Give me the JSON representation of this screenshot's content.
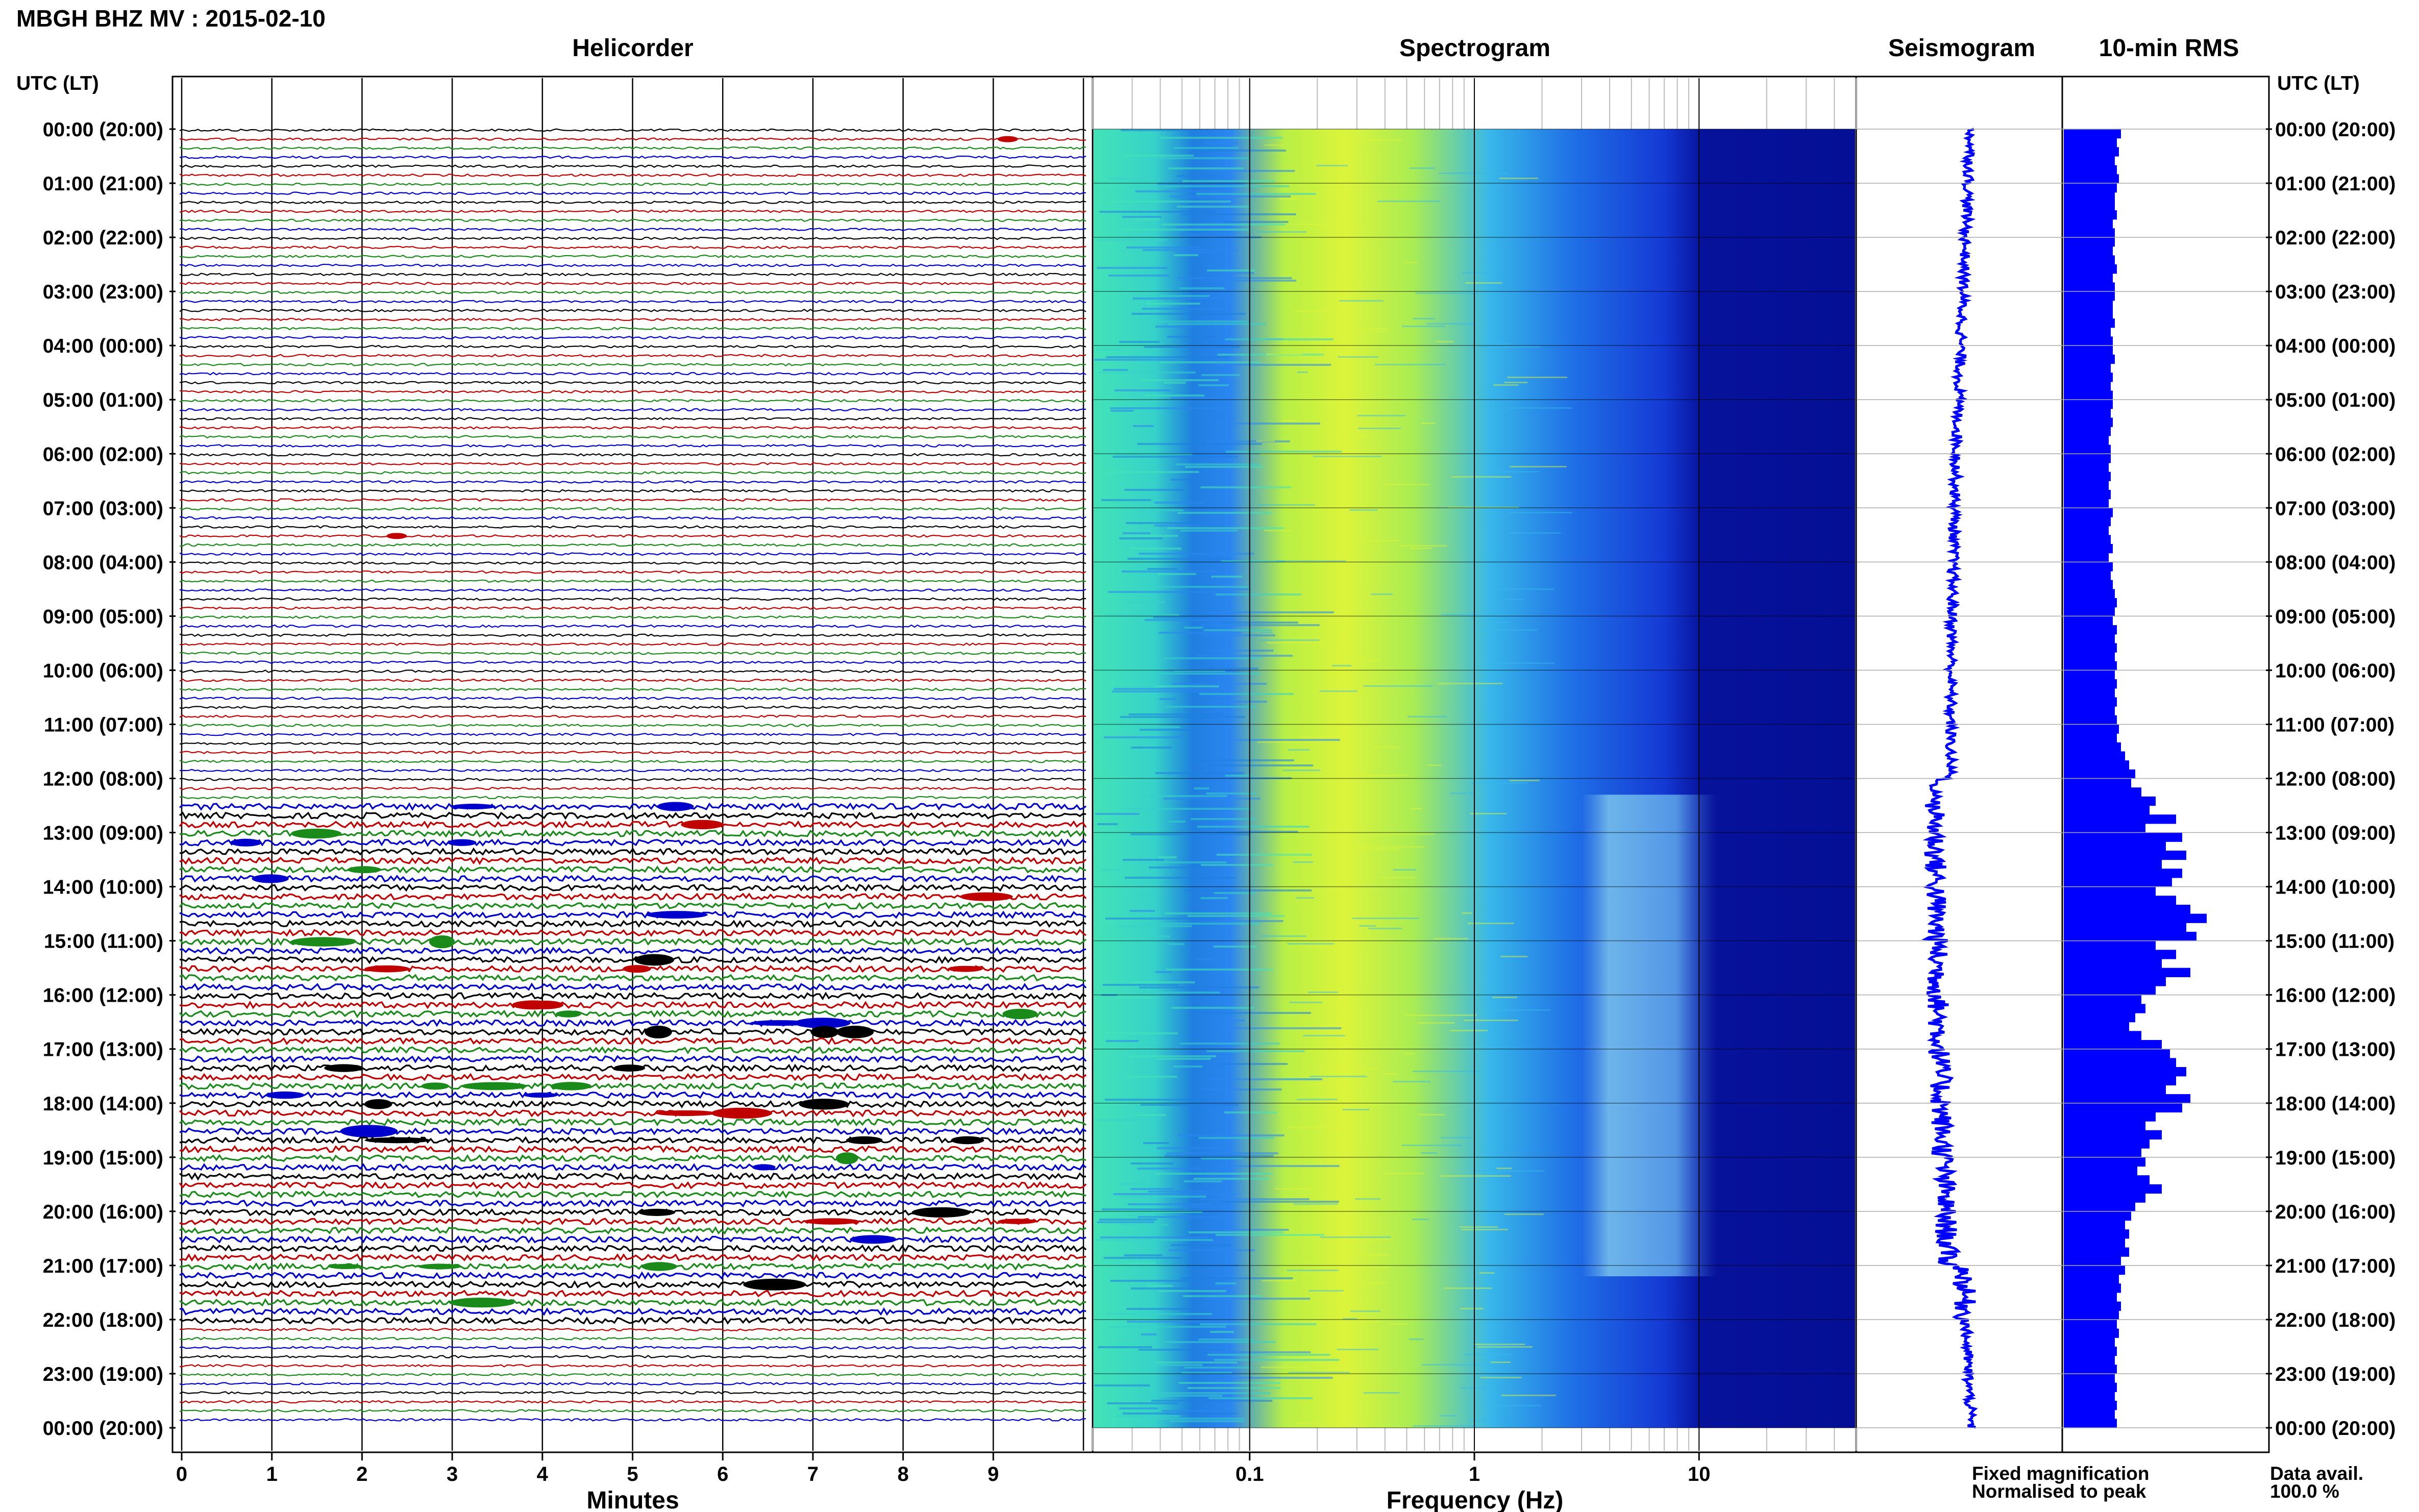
{
  "header": {
    "station_title": "MBGH BHZ MV : 2015-02-10",
    "utc_lt_label": "UTC (LT)"
  },
  "panels": {
    "helicorder": "Helicorder",
    "spectrogram": "Spectrogram",
    "seismogram": "Seismogram",
    "rms": "10-min RMS"
  },
  "time_labels": [
    "00:00 (20:00)",
    "01:00 (21:00)",
    "02:00 (22:00)",
    "03:00 (23:00)",
    "04:00 (00:00)",
    "05:00 (01:00)",
    "06:00 (02:00)",
    "07:00 (03:00)",
    "08:00 (04:00)",
    "09:00 (05:00)",
    "10:00 (06:00)",
    "11:00 (07:00)",
    "12:00 (08:00)",
    "13:00 (09:00)",
    "14:00 (10:00)",
    "15:00 (11:00)",
    "16:00 (12:00)",
    "17:00 (13:00)",
    "18:00 (14:00)",
    "19:00 (15:00)",
    "20:00 (16:00)",
    "21:00 (17:00)",
    "22:00 (18:00)",
    "23:00 (19:00)",
    "00:00 (20:00)"
  ],
  "helicorder": {
    "xlabel": "Minutes",
    "xticks": [
      "0",
      "1",
      "2",
      "3",
      "4",
      "5",
      "6",
      "7",
      "8",
      "9"
    ],
    "trace_colors": [
      "#000000",
      "#c00000",
      "#1a8a1a",
      "#0000cc"
    ],
    "lines_per_hour": 6
  },
  "spectrogram": {
    "xlabel": "Frequency (Hz)",
    "xticks": [
      "0.1",
      "1",
      "10"
    ],
    "scale": "log",
    "xlim_hz": [
      0.02,
      50
    ]
  },
  "legend": {
    "fixed": "Fixed magnification",
    "normalised": "Normalised to peak",
    "fixed_color": "#0000ff",
    "normalised_color": "#ff0000"
  },
  "data_avail": {
    "label": "Data avail.",
    "value": "100.0 %"
  },
  "chart_data": {
    "type": "heatmap",
    "title": "MBGH BHZ MV : 2015-02-10",
    "date": "2015-02-10",
    "time_axis": "UTC (LT)",
    "ylim_hours_utc": [
      0,
      24
    ],
    "rms_bar_color": "#0000ff",
    "rms_10min_relative": [
      0.28,
      0.26,
      0.27,
      0.25,
      0.26,
      0.27,
      0.26,
      0.25,
      0.25,
      0.26,
      0.24,
      0.25,
      0.25,
      0.24,
      0.25,
      0.26,
      0.24,
      0.25,
      0.25,
      0.24,
      0.24,
      0.25,
      0.23,
      0.24,
      0.24,
      0.25,
      0.23,
      0.24,
      0.23,
      0.24,
      0.24,
      0.23,
      0.24,
      0.23,
      0.22,
      0.23,
      0.23,
      0.22,
      0.23,
      0.22,
      0.23,
      0.22,
      0.24,
      0.23,
      0.22,
      0.23,
      0.24,
      0.22,
      0.24,
      0.23,
      0.24,
      0.25,
      0.26,
      0.25,
      0.24,
      0.26,
      0.25,
      0.26,
      0.25,
      0.26,
      0.25,
      0.26,
      0.25,
      0.26,
      0.25,
      0.26,
      0.27,
      0.26,
      0.28,
      0.3,
      0.32,
      0.35,
      0.33,
      0.38,
      0.45,
      0.42,
      0.55,
      0.4,
      0.58,
      0.5,
      0.6,
      0.48,
      0.58,
      0.53,
      0.45,
      0.55,
      0.62,
      0.7,
      0.6,
      0.65,
      0.45,
      0.55,
      0.48,
      0.62,
      0.5,
      0.45,
      0.38,
      0.4,
      0.35,
      0.32,
      0.38,
      0.48,
      0.52,
      0.55,
      0.6,
      0.55,
      0.5,
      0.62,
      0.58,
      0.45,
      0.4,
      0.48,
      0.42,
      0.38,
      0.4,
      0.36,
      0.42,
      0.48,
      0.4,
      0.35,
      0.33,
      0.3,
      0.32,
      0.3,
      0.32,
      0.28,
      0.3,
      0.27,
      0.28,
      0.26,
      0.28,
      0.27,
      0.26,
      0.27,
      0.25,
      0.26,
      0.25,
      0.26,
      0.25,
      0.26,
      0.25,
      0.26,
      0.25,
      0.26
    ],
    "helicorder_active_hours_utc": [
      12.5,
      22
    ],
    "spectrogram_tremor_band_hz": [
      3,
      12
    ],
    "spectrogram_tremor_hours_utc": [
      12.3,
      21.2
    ]
  }
}
